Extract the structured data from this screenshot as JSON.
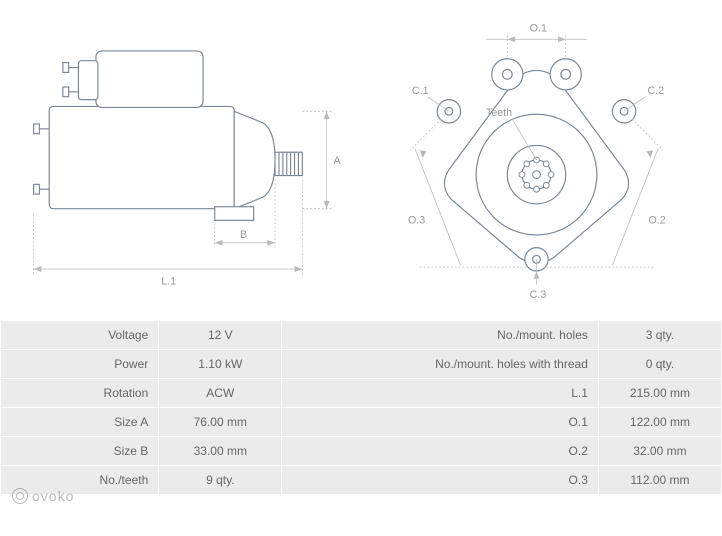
{
  "diagram": {
    "side_view": {
      "labels": {
        "A": "A",
        "B": "B",
        "L1": "L.1"
      },
      "stroke": "#7a8896",
      "dim_color": "#bbbbbb",
      "label_color": "#999999"
    },
    "front_view": {
      "labels": {
        "O1": "O.1",
        "O2": "O.2",
        "O3": "O.3",
        "C1": "C.1",
        "C2": "C.2",
        "C3": "C.3",
        "teeth": "Teeth"
      },
      "stroke": "#7a8896",
      "dim_color": "#bbbbbb",
      "label_color": "#999999"
    }
  },
  "specs": {
    "rows": [
      {
        "label1": "Voltage",
        "value1": "12 V",
        "label2": "No./mount. holes",
        "value2": "3 qty."
      },
      {
        "label1": "Power",
        "value1": "1.10 kW",
        "label2": "No./mount. holes with thread",
        "value2": "0 qty."
      },
      {
        "label1": "Rotation",
        "value1": "ACW",
        "label2": "L.1",
        "value2": "215.00 mm"
      },
      {
        "label1": "Size A",
        "value1": "76.00 mm",
        "label2": "O.1",
        "value2": "122.00 mm"
      },
      {
        "label1": "Size B",
        "value1": "33.00 mm",
        "label2": "O.2",
        "value2": "32.00 mm"
      },
      {
        "label1": "No./teeth",
        "value1": "9 qty.",
        "label2": "O.3",
        "value2": "112.00 mm"
      }
    ],
    "cell_bg": "#ebebeb",
    "border_color": "#ffffff",
    "text_color": "#666666",
    "fontsize": 12
  },
  "watermark": {
    "text": "ovoko"
  }
}
